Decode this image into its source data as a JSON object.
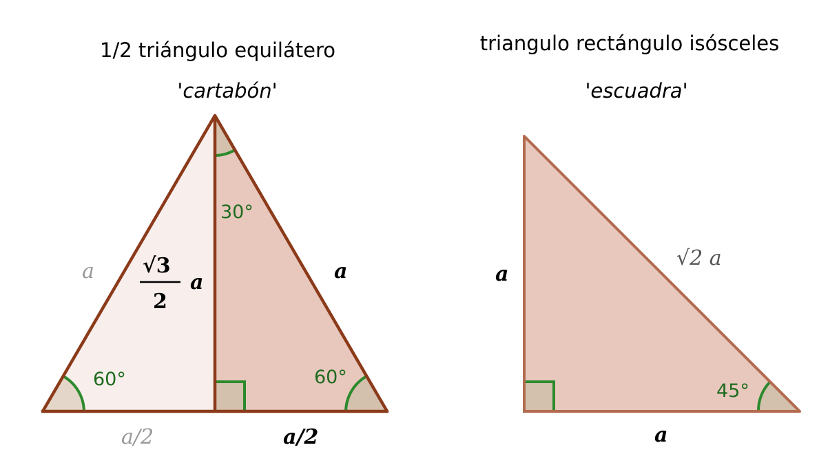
{
  "left_panel": {
    "title": "1/2 triángulo equilátero",
    "subtitle": "'cartabón'",
    "labels": {
      "left_side": "a",
      "height_num": "√3",
      "height_den": "2",
      "height_var": "a",
      "right_side": "a",
      "base_left": "a/2",
      "base_right": "a/2",
      "angle_top": "30°",
      "angle_left": "60°",
      "angle_right": "60°"
    }
  },
  "right_panel": {
    "title": "triangulo rectángulo isósceles",
    "subtitle": "'escuadra'",
    "labels": {
      "vertical_side": "a",
      "hypotenuse": "√2 a",
      "base": "a",
      "angle": "45°"
    }
  },
  "colors": {
    "edge_dark": "#8b3a1a",
    "edge_light": "#b36b4f",
    "fill_light": "#f8efec",
    "fill_dark": "#e8c8bd",
    "angle_green": "#2d8a2d",
    "angle_fill": "#d4c1ad",
    "label_green": "#1f6b1f",
    "label_gray": "#999999"
  }
}
